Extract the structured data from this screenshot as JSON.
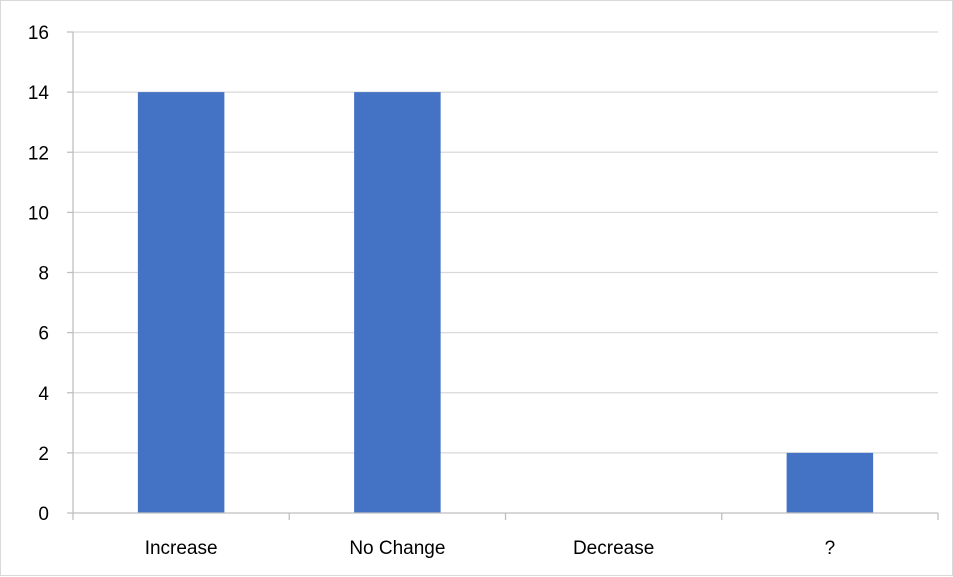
{
  "chart_data": {
    "type": "bar",
    "categories": [
      "Increase",
      "No Change",
      "Decrease",
      "?"
    ],
    "values": [
      14,
      14,
      0,
      2
    ],
    "title": "",
    "xlabel": "",
    "ylabel": "",
    "ylim": [
      0,
      16
    ],
    "y_ticks": [
      "0",
      "2",
      "4",
      "6",
      "8",
      "10",
      "12",
      "14",
      "16"
    ],
    "grid": true,
    "legend": "none",
    "colors": {
      "bar": "#4472C4",
      "grid": "#d9d9d9",
      "axis": "#bfbfbf",
      "text": "#000000"
    }
  }
}
